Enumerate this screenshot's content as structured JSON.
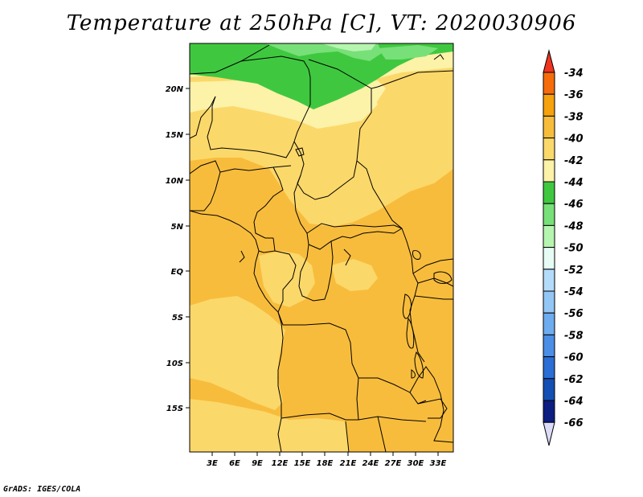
{
  "title": "Temperature at 250hPa [C], VT: 2020030906",
  "credit": "GrADS: IGES/COLA",
  "map": {
    "lat_labels": [
      "20N",
      "15N",
      "10N",
      "5N",
      "EQ",
      "5S",
      "10S",
      "15S"
    ],
    "lon_labels": [
      "3E",
      "6E",
      "9E",
      "12E",
      "15E",
      "18E",
      "21E",
      "24E",
      "27E",
      "30E",
      "33E"
    ]
  },
  "colorbar": {
    "labels": [
      "-34",
      "-36",
      "-38",
      "-40",
      "-42",
      "-44",
      "-46",
      "-48",
      "-50",
      "-52",
      "-54",
      "-56",
      "-58",
      "-60",
      "-62",
      "-64",
      "-66"
    ],
    "colors": [
      "#f0341e",
      "#f66c0a",
      "#f6a10e",
      "#f8bc3c",
      "#fbd86a",
      "#fcf2a8",
      "#3fc83f",
      "#78e078",
      "#b6f5b0",
      "#e6fcf4",
      "#b4dcfa",
      "#93c6f5",
      "#6eacf0",
      "#4a8ee6",
      "#2a6ed6",
      "#1450b4",
      "#0c1e82",
      "#dcdcf8"
    ]
  }
}
